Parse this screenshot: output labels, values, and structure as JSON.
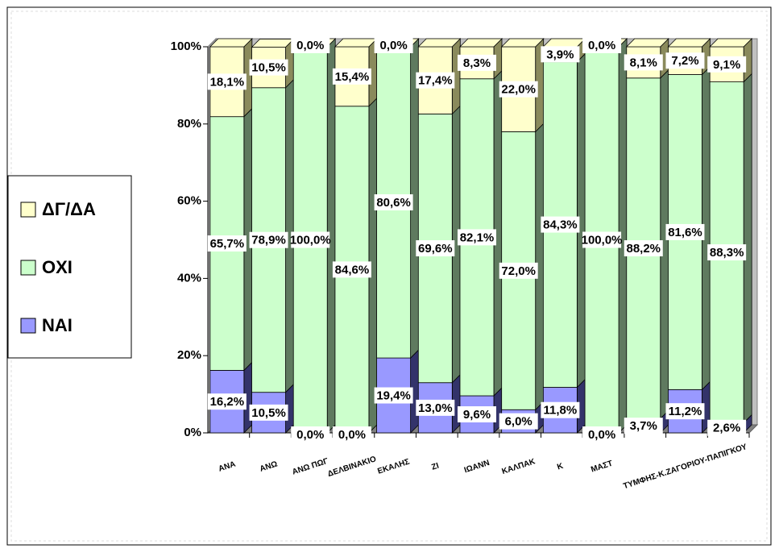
{
  "chart_data": {
    "type": "bar3d_stacked_percent",
    "categories": [
      "ΑΝΑ",
      "ΑΝΩ",
      "ΑΝΩ ΠΩΓ",
      "ΔΕΛΒΙΝΑΚΙΟ",
      "ΕΚΑΛΗΣ",
      "ΖΙ",
      "ΙΩΑΝΝ",
      "ΚΑΛΠΑΚ",
      "Κ",
      "ΜΑΣΤ",
      null,
      "ΤΥΜΦΗΣ-Κ.ΖΑΓΟΡΙΟΥ-ΠΑΠΙΓΚΟΥ",
      null
    ],
    "series": [
      {
        "name": "ΝΑΙ",
        "color": "#9999ff",
        "side": "#33336a",
        "values": [
          16.2,
          10.5,
          0.0,
          0.0,
          19.4,
          13.0,
          9.6,
          6.0,
          11.8,
          0.0,
          3.7,
          11.2,
          2.6
        ],
        "value_labels": [
          "16,2%",
          "10,5%",
          "0,0%",
          "0,0%",
          "19,4%",
          "13,0%",
          "9,6%",
          "6,0%",
          "11,8%",
          "0,0%",
          "3,7%",
          "11,2%",
          "2,6%"
        ]
      },
      {
        "name": "ΟΧΙ",
        "color": "#ccffcc",
        "side": "#5f7a5f",
        "values": [
          65.7,
          78.9,
          100.0,
          84.6,
          80.6,
          69.6,
          82.1,
          72.0,
          84.3,
          100.0,
          88.2,
          81.6,
          88.3
        ],
        "value_labels": [
          "65,7%",
          "78,9%",
          "100,0%",
          "84,6%",
          "80,6%",
          "69,6%",
          "82,1%",
          "72,0%",
          "84,3%",
          "100,0%",
          "88,2%",
          "81,6%",
          "88,3%"
        ]
      },
      {
        "name": "ΔΓ/ΔΑ",
        "color": "#ffffcc",
        "side": "#8a8a5c",
        "values": [
          18.1,
          10.5,
          0.0,
          15.4,
          0.0,
          17.4,
          8.3,
          22.0,
          3.9,
          0.0,
          8.1,
          7.2,
          9.1
        ],
        "value_labels": [
          "18,1%",
          "10,5%",
          "0,0%",
          "15,4%",
          "0,0%",
          "17,4%",
          "8,3%",
          "22,0%",
          "3,9%",
          "0,0%",
          "8,1%",
          "7,2%",
          "9,1%"
        ]
      }
    ],
    "ylim": [
      0,
      100
    ],
    "yticks": [
      {
        "value": 0,
        "label": "0%"
      },
      {
        "value": 20,
        "label": "20%"
      },
      {
        "value": 40,
        "label": "40%"
      },
      {
        "value": 60,
        "label": "60%"
      },
      {
        "value": 80,
        "label": "80%"
      },
      {
        "value": 100,
        "label": "100%"
      }
    ],
    "legend": "left"
  }
}
